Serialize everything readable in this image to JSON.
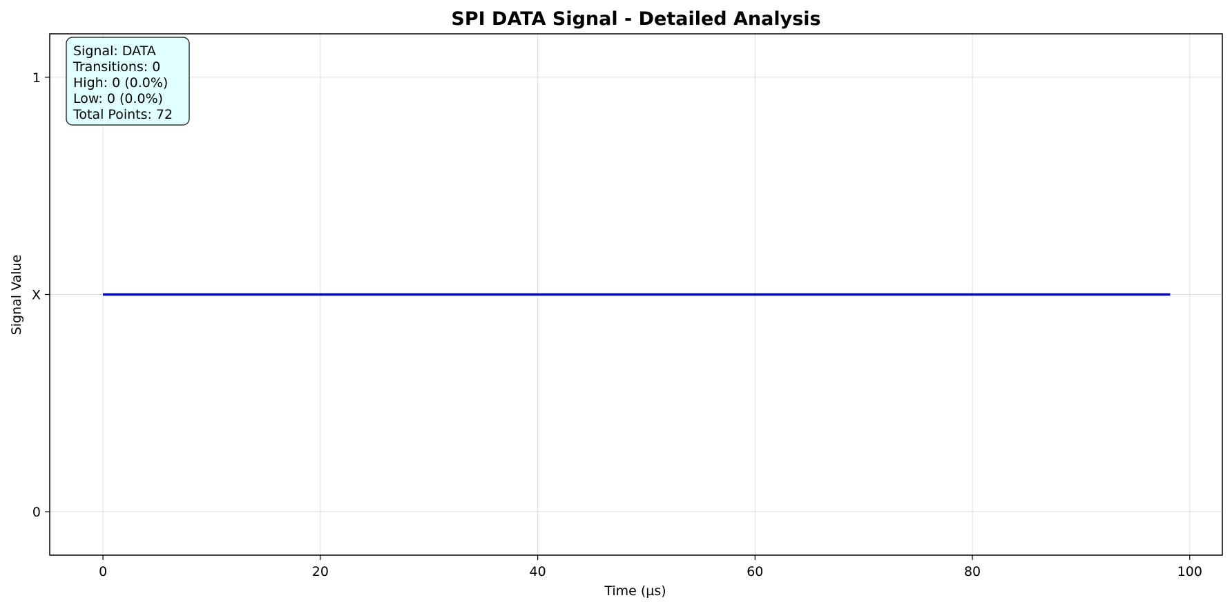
{
  "chart_data": {
    "type": "line",
    "title": "SPI DATA Signal - Detailed Analysis",
    "xlabel": "Time (µs)",
    "ylabel": "Signal Value",
    "xlim": [
      -4.9,
      103
    ],
    "ylim": [
      -0.2,
      2.2
    ],
    "x_ticks": [
      0,
      20,
      40,
      60,
      80,
      100
    ],
    "x_tick_labels": [
      "0",
      "20",
      "40",
      "60",
      "80",
      "100"
    ],
    "y_ticks": [
      0,
      1,
      2
    ],
    "y_tick_labels": [
      "0",
      "X",
      "1"
    ],
    "grid": true,
    "series": [
      {
        "color": "#0000cc",
        "x": [
          0,
          98.2
        ],
        "y": [
          1,
          1
        ]
      }
    ],
    "info_box": {
      "placement": "top-left",
      "lines": [
        "Signal: DATA",
        "Transitions: 0",
        "High: 0 (0.0%)",
        "Low: 0 (0.0%)",
        "Total Points: 72"
      ],
      "background": "#e0ffff",
      "border": "#333333"
    }
  }
}
